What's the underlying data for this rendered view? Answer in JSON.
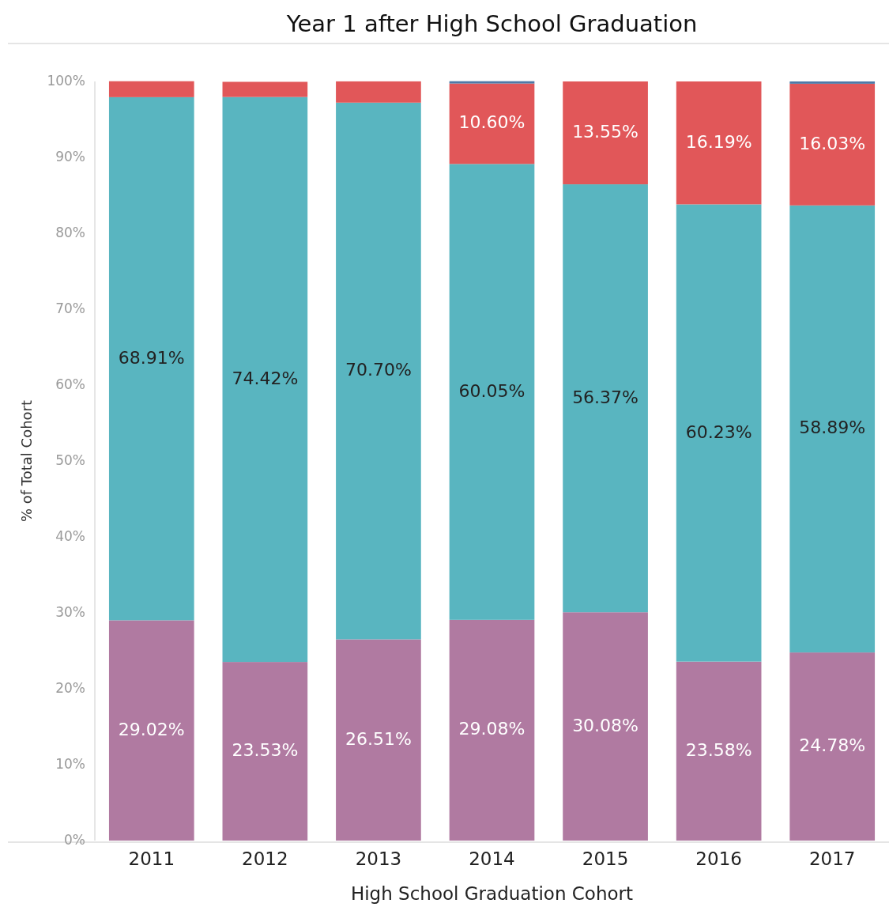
{
  "chart_data": {
    "type": "bar",
    "stacked": true,
    "title": "Year 1 after High School Graduation",
    "xlabel": "High School Graduation Cohort",
    "ylabel": "% of Total Cohort",
    "categories": [
      "2011",
      "2012",
      "2013",
      "2014",
      "2015",
      "2016",
      "2017"
    ],
    "ylim": [
      0,
      100
    ],
    "yticks": [
      {
        "value": 0,
        "label": "0%"
      },
      {
        "value": 10,
        "label": "10%"
      },
      {
        "value": 20,
        "label": "20%"
      },
      {
        "value": 30,
        "label": "30%"
      },
      {
        "value": 40,
        "label": "40%"
      },
      {
        "value": 50,
        "label": "50%"
      },
      {
        "value": 60,
        "label": "60%"
      },
      {
        "value": 70,
        "label": "70%"
      },
      {
        "value": 80,
        "label": "80%"
      },
      {
        "value": 90,
        "label": "90%"
      },
      {
        "value": 100,
        "label": "100%"
      }
    ],
    "grid": false,
    "series": [
      {
        "color": "#b07aa1",
        "values": [
          29.02,
          23.53,
          26.51,
          29.08,
          30.08,
          23.58,
          24.78
        ],
        "value_labels": [
          "29.02%",
          "23.53%",
          "26.51%",
          "29.08%",
          "30.08%",
          "23.58%",
          "24.78%"
        ]
      },
      {
        "color": "#59b5c0",
        "values": [
          68.91,
          74.42,
          70.7,
          60.05,
          56.37,
          60.23,
          58.89
        ],
        "value_labels": [
          "68.91%",
          "74.42%",
          "70.70%",
          "60.05%",
          "56.37%",
          "60.23%",
          "58.89%"
        ]
      },
      {
        "color": "#e15759",
        "values": [
          2.1,
          2.0,
          2.8,
          10.6,
          13.55,
          16.19,
          16.03
        ],
        "value_labels": [
          null,
          null,
          null,
          "10.60%",
          "13.55%",
          "16.19%",
          "16.03%"
        ]
      },
      {
        "color": "#4e79a7",
        "values": [
          null,
          null,
          null,
          0.3,
          null,
          null,
          0.3
        ]
      }
    ]
  }
}
